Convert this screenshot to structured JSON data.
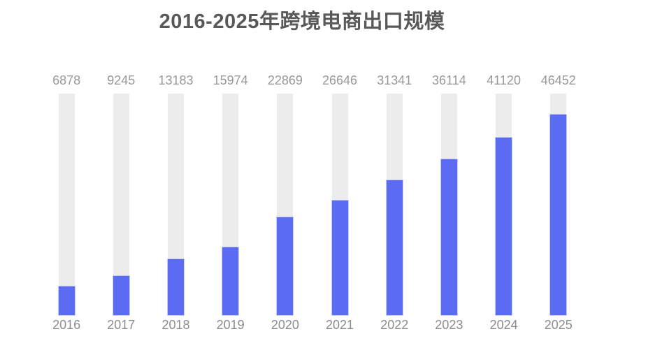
{
  "page": {
    "background_color": "#ffffff"
  },
  "chart_data": {
    "type": "bar",
    "title": "2016-2025年跨境电商出口规模",
    "categories": [
      "2016",
      "2017",
      "2018",
      "2019",
      "2020",
      "2021",
      "2022",
      "2023",
      "2024",
      "2025"
    ],
    "values": [
      6878,
      9245,
      13183,
      15974,
      22869,
      26646,
      31341,
      36114,
      41120,
      46452
    ],
    "xlabel": "",
    "ylabel": "",
    "ylim": [
      0,
      51100
    ],
    "grid": false,
    "legend_position": "none",
    "value_labels_shown": true,
    "bar_style": "filled-bar-over-full-height-track",
    "colors": {
      "bar_fill": "#5b6bf2",
      "bar_fill_border": "#c7cdfa",
      "bar_track": "#ececec",
      "title_text": "#595959",
      "value_label_text": "#999999",
      "tick_label_text": "#8c8c8c",
      "background": "#ffffff"
    }
  }
}
